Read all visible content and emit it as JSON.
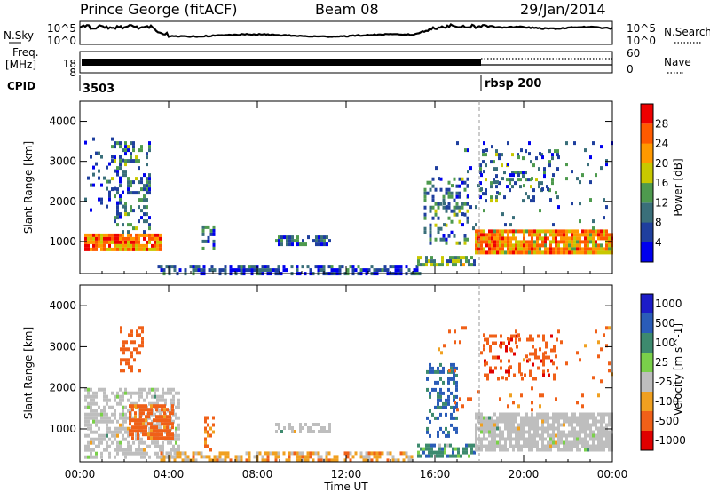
{
  "header": {
    "station": "Prince George (fitACF)",
    "beam": "Beam 08",
    "date": "29/Jan/2014"
  },
  "strip_labels": {
    "nsky": "N.Sky",
    "nsearch": "N.Search",
    "freq_line1": "Freq.",
    "freq_line2": "[MHz]",
    "cpid": "CPID",
    "nave": "Nave"
  },
  "noise_axis": {
    "left_top": "10^5",
    "left_bottom": "10^0",
    "right_top": "10^5",
    "right_bottom": "10^0"
  },
  "freq_axis": {
    "left_top": "18",
    "left_bottom": "8",
    "right_top": "60",
    "right_bottom": "0"
  },
  "cpid_values": [
    {
      "label": "3503",
      "start": 0
    },
    {
      "label": "rbsp 200",
      "start": 18.0
    }
  ],
  "colors": {
    "power_scale": [
      "#0000ee",
      "#1f3f9e",
      "#3a6f7a",
      "#4e9a4e",
      "#c8c800",
      "#ff9900",
      "#ff5a00",
      "#ee0000"
    ],
    "velocity_scale": [
      "#1c1cc8",
      "#2a5cb8",
      "#3d8a6e",
      "#7ad04a",
      "#bebebe",
      "#f0a020",
      "#f06018",
      "#e00000"
    ],
    "scatter_gray": "#bebebe"
  },
  "chart_data": [
    {
      "type": "heatmap",
      "panel": "power",
      "xlabel": "Time UT",
      "ylabel": "Slant Range [km]",
      "x_ticks": [
        "00:00",
        "04:00",
        "08:00",
        "12:00",
        "16:00",
        "20:00",
        "00:00"
      ],
      "x_range": [
        0,
        24
      ],
      "y_ticks": [
        "1000",
        "2000",
        "3000",
        "4000"
      ],
      "y_range": [
        200,
        4500
      ],
      "cbar_label": "Power [dB]",
      "cbar_ticks": [
        "4",
        "8",
        "12",
        "16",
        "20",
        "24",
        "28"
      ],
      "cbar_range": [
        0,
        32
      ],
      "regions": [
        {
          "t0": 0.2,
          "t1": 3.6,
          "r0": 800,
          "r1": 1200,
          "density": 0.9,
          "level": 24
        },
        {
          "t0": 1.4,
          "t1": 3.2,
          "r0": 1200,
          "r1": 3500,
          "density": 0.35,
          "level": 10
        },
        {
          "t0": 0.2,
          "t1": 2.0,
          "r0": 1600,
          "r1": 3600,
          "density": 0.12,
          "level": 6
        },
        {
          "t0": 5.5,
          "t1": 6.0,
          "r0": 800,
          "r1": 1400,
          "density": 0.5,
          "level": 10
        },
        {
          "t0": 8.8,
          "t1": 11.3,
          "r0": 950,
          "r1": 1150,
          "density": 0.7,
          "level": 9
        },
        {
          "t0": 3.5,
          "t1": 15.3,
          "r0": 200,
          "r1": 420,
          "density": 0.6,
          "level": 6
        },
        {
          "t0": 15.2,
          "t1": 17.8,
          "r0": 380,
          "r1": 640,
          "density": 0.7,
          "level": 14
        },
        {
          "t0": 15.5,
          "t1": 17.5,
          "r0": 1000,
          "r1": 2600,
          "density": 0.35,
          "level": 10
        },
        {
          "t0": 17.8,
          "t1": 24.0,
          "r0": 700,
          "r1": 1300,
          "density": 0.9,
          "level": 22
        },
        {
          "t0": 18.0,
          "t1": 21.5,
          "r0": 2000,
          "r1": 3300,
          "density": 0.2,
          "level": 10
        },
        {
          "t0": 16.0,
          "t1": 24.0,
          "r0": 1300,
          "r1": 3500,
          "density": 0.04,
          "level": 8
        }
      ]
    },
    {
      "type": "heatmap",
      "panel": "velocity",
      "xlabel": "Time UT",
      "ylabel": "Slant Range [km]",
      "x_ticks": [
        "00:00",
        "04:00",
        "08:00",
        "12:00",
        "16:00",
        "20:00",
        "00:00"
      ],
      "x_range": [
        0,
        24
      ],
      "y_ticks": [
        "1000",
        "2000",
        "3000",
        "4000"
      ],
      "y_range": [
        200,
        4500
      ],
      "cbar_label": "Velocity [m s^-1]",
      "cbar_ticks": [
        "1000",
        "500",
        "100",
        "25",
        "-25",
        "-100",
        "-500",
        "-1000"
      ],
      "regions": [
        {
          "t0": 0.2,
          "t1": 4.5,
          "r0": 300,
          "r1": 2000,
          "density": 0.55,
          "level": 0
        },
        {
          "t0": 2.2,
          "t1": 4.2,
          "r0": 800,
          "r1": 1600,
          "density": 0.7,
          "level": -200
        },
        {
          "t0": 1.8,
          "t1": 2.8,
          "r0": 2400,
          "r1": 3500,
          "density": 0.4,
          "level": -300
        },
        {
          "t0": 5.6,
          "t1": 6.0,
          "r0": 500,
          "r1": 1400,
          "density": 0.5,
          "level": -150
        },
        {
          "t0": 8.8,
          "t1": 11.3,
          "r0": 950,
          "r1": 1150,
          "density": 0.6,
          "level": 0
        },
        {
          "t0": 3.5,
          "t1": 15.0,
          "r0": 200,
          "r1": 450,
          "density": 0.6,
          "level": -60
        },
        {
          "t0": 15.2,
          "t1": 17.8,
          "r0": 380,
          "r1": 640,
          "density": 0.6,
          "level": 60
        },
        {
          "t0": 15.6,
          "t1": 17.0,
          "r0": 800,
          "r1": 2600,
          "density": 0.35,
          "level": 150
        },
        {
          "t0": 17.8,
          "t1": 24.0,
          "r0": 500,
          "r1": 1400,
          "density": 0.85,
          "level": 0
        },
        {
          "t0": 18.2,
          "t1": 21.5,
          "r0": 2200,
          "r1": 3300,
          "density": 0.25,
          "level": -400
        },
        {
          "t0": 16.0,
          "t1": 24.0,
          "r0": 1400,
          "r1": 3500,
          "density": 0.04,
          "level": -200
        }
      ]
    }
  ]
}
